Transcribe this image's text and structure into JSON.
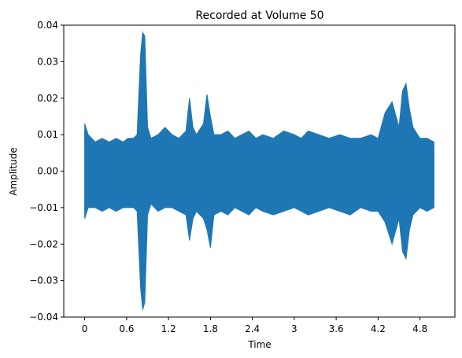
{
  "chart_data": {
    "type": "line",
    "title": "Recorded at Volume 50",
    "xlabel": "Time",
    "ylabel": "Amplitude",
    "xlim": [
      -0.3,
      5.3
    ],
    "ylim": [
      -0.04,
      0.04
    ],
    "xticks": [
      0,
      0.6,
      1.2,
      1.8,
      2.4,
      3.0,
      3.6,
      4.2,
      4.8
    ],
    "xtick_labels": [
      "0",
      "0.6",
      "1.2",
      "1.8",
      "2.4",
      "3",
      "3.6",
      "4.2",
      "4.8"
    ],
    "yticks": [
      -0.04,
      -0.03,
      -0.02,
      -0.01,
      0.0,
      0.01,
      0.02,
      0.03,
      0.04
    ],
    "ytick_labels": [
      "−0.04",
      "−0.03",
      "−0.02",
      "−0.01",
      "0.00",
      "0.01",
      "0.02",
      "0.03",
      "0.04"
    ],
    "grid": false,
    "series": [
      {
        "color": "#1f77b4",
        "envelope": {
          "x": [
            0.0,
            0.05,
            0.15,
            0.25,
            0.35,
            0.45,
            0.55,
            0.62,
            0.7,
            0.75,
            0.8,
            0.83,
            0.86,
            0.9,
            0.95,
            1.05,
            1.15,
            1.25,
            1.35,
            1.45,
            1.5,
            1.55,
            1.6,
            1.7,
            1.75,
            1.8,
            1.85,
            1.95,
            2.05,
            2.15,
            2.25,
            2.35,
            2.45,
            2.55,
            2.7,
            2.85,
            3.0,
            3.1,
            3.2,
            3.35,
            3.5,
            3.65,
            3.8,
            3.95,
            4.1,
            4.2,
            4.3,
            4.4,
            4.5,
            4.55,
            4.6,
            4.65,
            4.7,
            4.8,
            4.9,
            5.0
          ],
          "upper": [
            0.013,
            0.01,
            0.008,
            0.009,
            0.008,
            0.009,
            0.008,
            0.009,
            0.009,
            0.01,
            0.032,
            0.038,
            0.037,
            0.012,
            0.009,
            0.01,
            0.012,
            0.01,
            0.009,
            0.011,
            0.02,
            0.012,
            0.01,
            0.013,
            0.021,
            0.015,
            0.01,
            0.01,
            0.011,
            0.009,
            0.01,
            0.011,
            0.009,
            0.01,
            0.009,
            0.011,
            0.01,
            0.009,
            0.011,
            0.01,
            0.009,
            0.01,
            0.009,
            0.009,
            0.01,
            0.009,
            0.016,
            0.019,
            0.012,
            0.022,
            0.024,
            0.017,
            0.012,
            0.009,
            0.009,
            0.008
          ],
          "lower": [
            -0.013,
            -0.01,
            -0.01,
            -0.011,
            -0.01,
            -0.011,
            -0.01,
            -0.01,
            -0.01,
            -0.011,
            -0.032,
            -0.038,
            -0.036,
            -0.012,
            -0.009,
            -0.011,
            -0.01,
            -0.01,
            -0.011,
            -0.012,
            -0.019,
            -0.013,
            -0.011,
            -0.013,
            -0.016,
            -0.021,
            -0.012,
            -0.011,
            -0.012,
            -0.01,
            -0.011,
            -0.012,
            -0.01,
            -0.011,
            -0.012,
            -0.011,
            -0.01,
            -0.011,
            -0.012,
            -0.011,
            -0.01,
            -0.011,
            -0.012,
            -0.01,
            -0.011,
            -0.011,
            -0.014,
            -0.02,
            -0.013,
            -0.022,
            -0.024,
            -0.016,
            -0.012,
            -0.01,
            -0.011,
            -0.01
          ]
        }
      }
    ]
  }
}
